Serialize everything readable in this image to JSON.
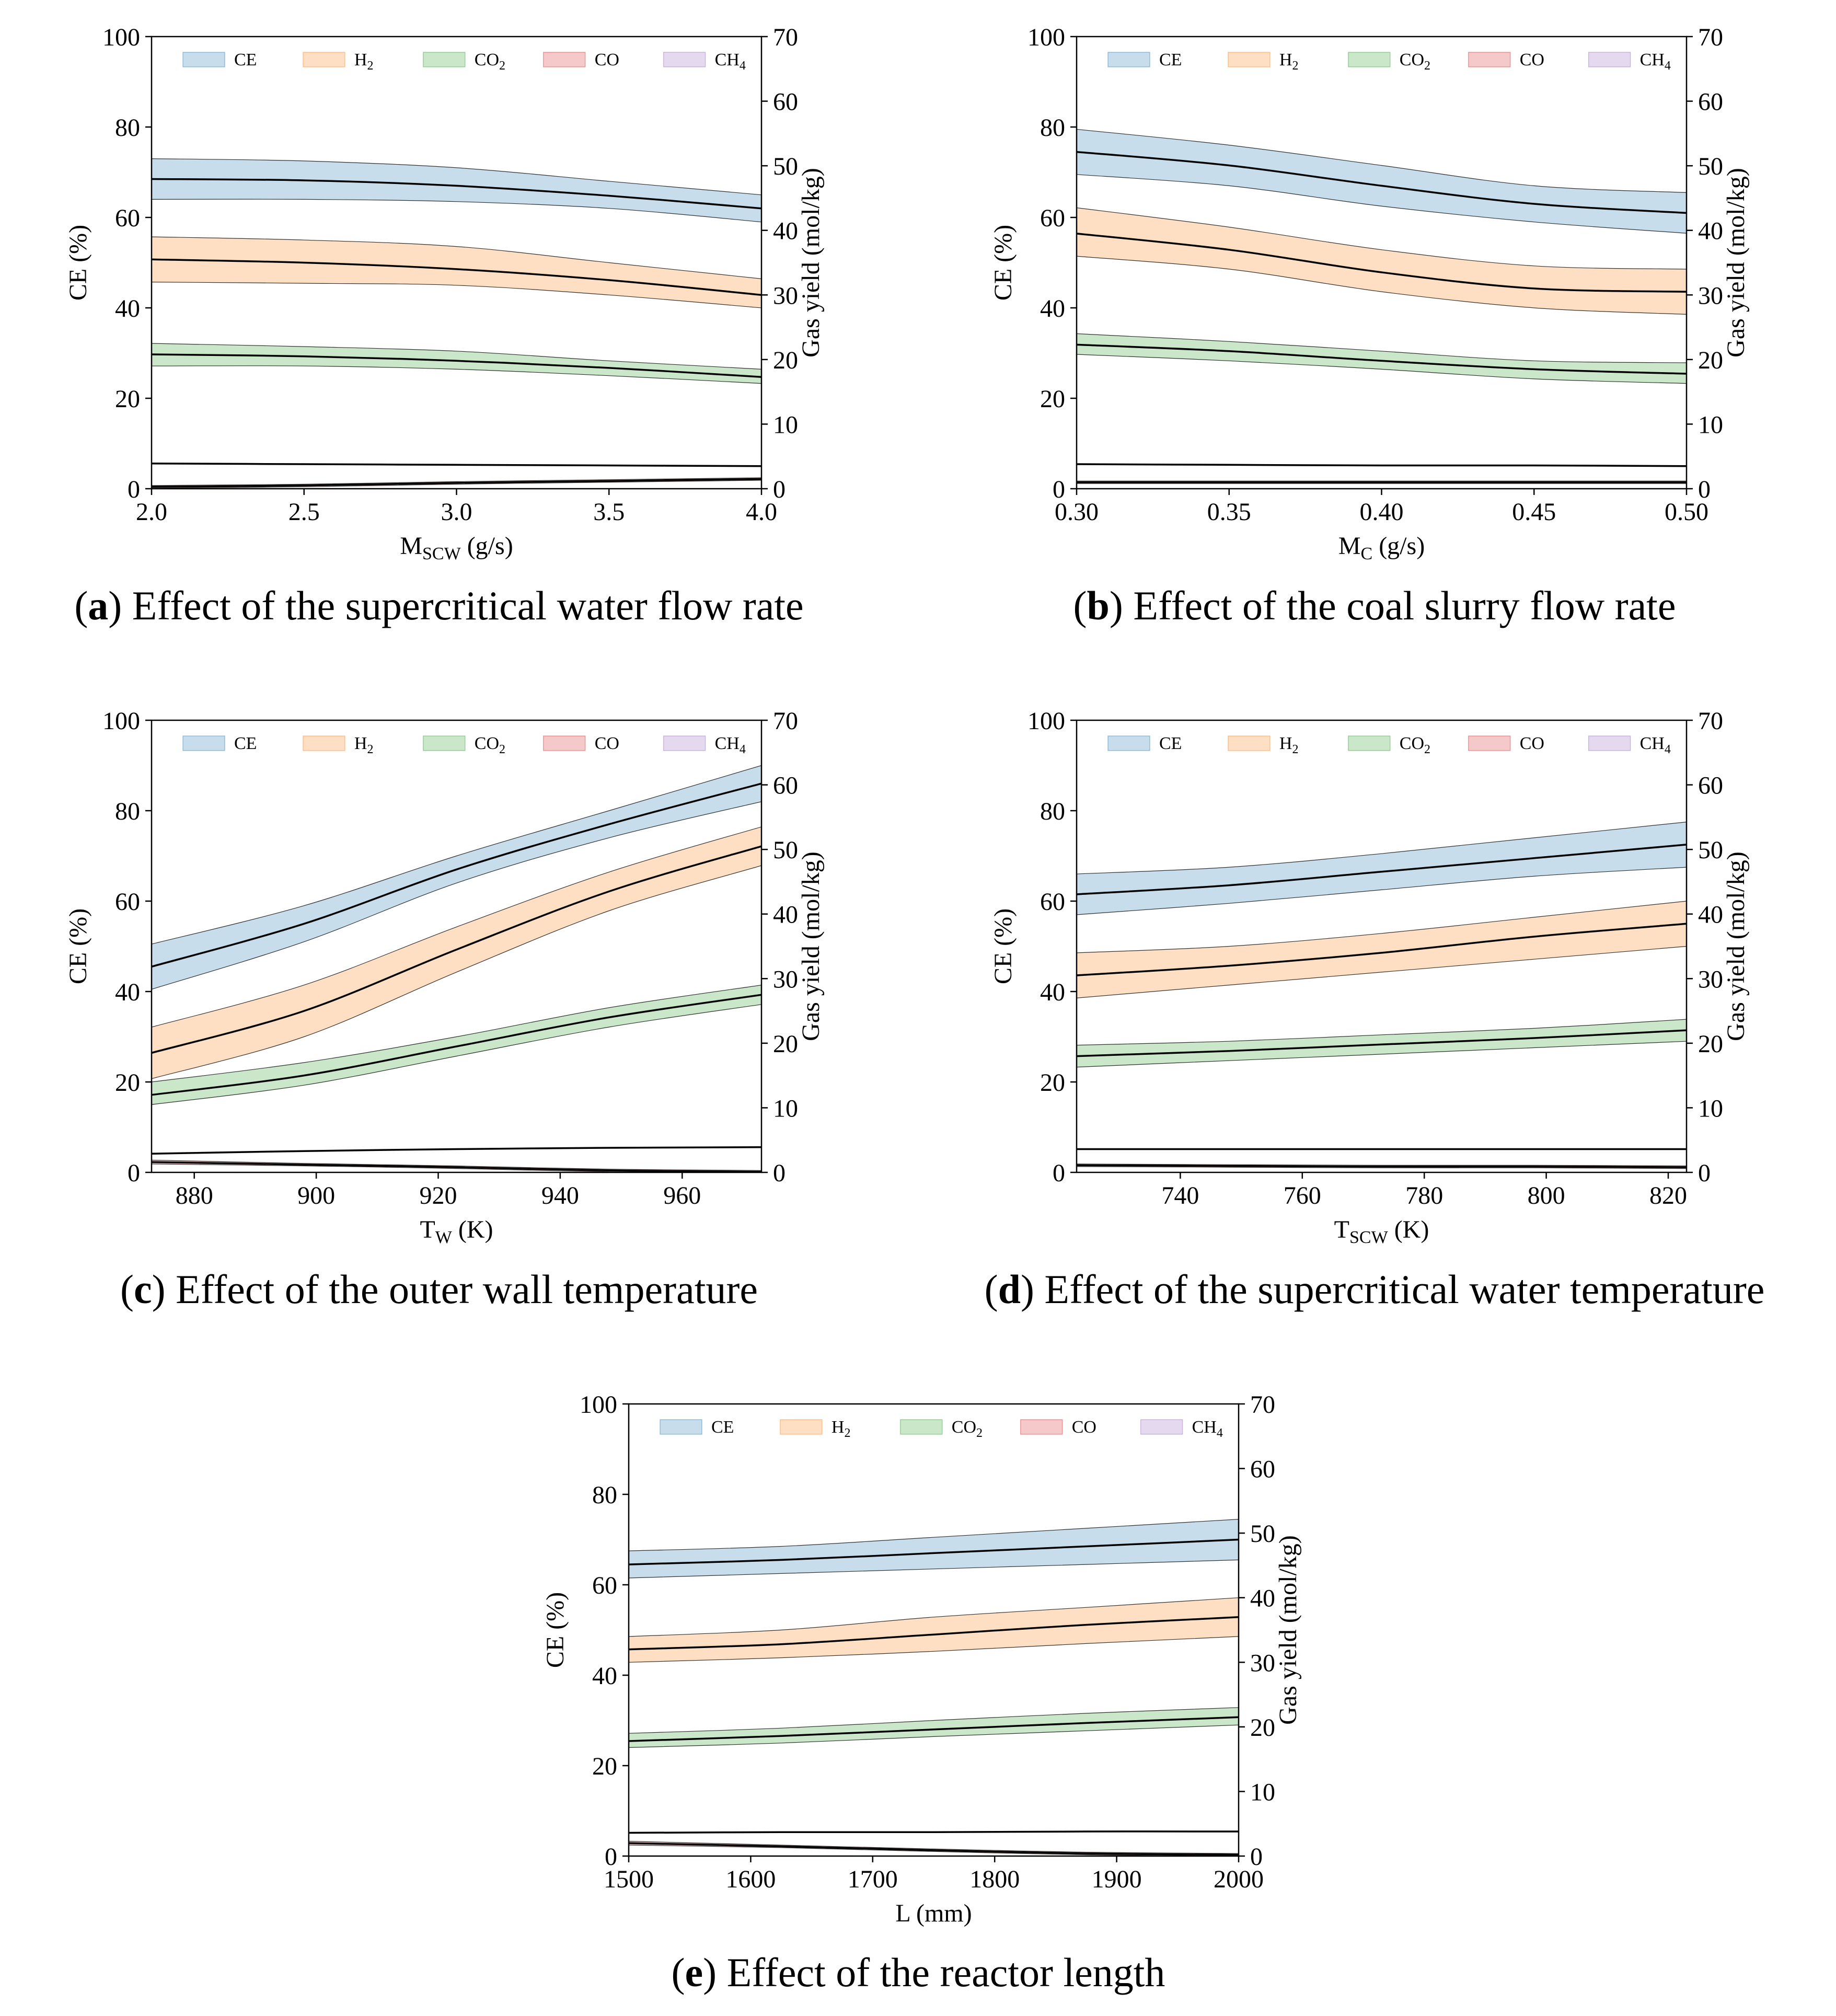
{
  "figure": {
    "panels": [
      {
        "id": "a",
        "letter": "a",
        "caption_text": "Effect of the supercritical water flow rate"
      },
      {
        "id": "b",
        "letter": "b",
        "caption_text": "Effect of the coal slurry flow rate"
      },
      {
        "id": "c",
        "letter": "c",
        "caption_text": "Effect of the outer wall temperature"
      },
      {
        "id": "d",
        "letter": "d",
        "caption_text": "Effect of the supercritical water temperature"
      },
      {
        "id": "e",
        "letter": "e",
        "caption_text": "Effect of the reactor length"
      }
    ]
  },
  "chart_data": [
    {
      "id": "a",
      "type": "line",
      "xlabel": "M",
      "xlabel_sub": "SCW",
      "xlabel_unit": " (g/s)",
      "ylabel_left": "CE (%)",
      "ylabel_right": "Gas yield (mol/kg)",
      "xlim": [
        2.0,
        4.0
      ],
      "ylim_left": [
        0,
        100
      ],
      "ylim_right": [
        0,
        70
      ],
      "xticks": [
        2.0,
        2.5,
        3.0,
        3.5,
        4.0
      ],
      "xtick_labels": [
        "2.0",
        "2.5",
        "3.0",
        "3.5",
        "4.0"
      ],
      "yticks_left": [
        "0",
        "20",
        "40",
        "60",
        "80",
        "100"
      ],
      "yticks_right": [
        "0",
        "10",
        "20",
        "30",
        "40",
        "50",
        "60",
        "70"
      ],
      "legend_position": "top",
      "series": [
        {
          "name": "CE",
          "axis": "left",
          "color": "#1f77b4",
          "x": [
            2.0,
            2.5,
            3.0,
            3.5,
            4.0
          ],
          "mean": [
            68.5,
            68.2,
            67.0,
            64.8,
            62.0
          ],
          "upper": [
            73.0,
            72.5,
            71.0,
            68.0,
            65.0
          ],
          "lower": [
            64.0,
            64.0,
            63.5,
            62.0,
            59.0
          ]
        },
        {
          "name": "H₂",
          "axis": "right",
          "color": "#ff7f0e",
          "x": [
            2.0,
            2.5,
            3.0,
            3.5,
            4.0
          ],
          "mean": [
            35.5,
            35.0,
            34.0,
            32.3,
            30.0
          ],
          "upper": [
            39.0,
            38.5,
            37.5,
            35.0,
            32.5
          ],
          "lower": [
            32.0,
            31.8,
            31.5,
            30.0,
            28.0
          ]
        },
        {
          "name": "CO₂",
          "axis": "right",
          "color": "#2ca02c",
          "x": [
            2.0,
            2.5,
            3.0,
            3.5,
            4.0
          ],
          "mean": [
            20.8,
            20.5,
            19.8,
            18.7,
            17.3
          ],
          "upper": [
            22.5,
            22.0,
            21.3,
            19.8,
            18.5
          ],
          "lower": [
            19.0,
            19.0,
            18.5,
            17.5,
            16.3
          ]
        },
        {
          "name": "CO",
          "axis": "right",
          "color": "#d62728",
          "x": [
            2.0,
            2.5,
            3.0,
            3.5,
            4.0
          ],
          "mean": [
            0.3,
            0.5,
            0.9,
            1.2,
            1.5
          ],
          "upper": [
            0.5,
            0.7,
            1.1,
            1.4,
            1.7
          ],
          "lower": [
            0.1,
            0.3,
            0.7,
            1.0,
            1.3
          ]
        },
        {
          "name": "CH₄",
          "axis": "right",
          "color": "#9467bd",
          "x": [
            2.0,
            2.5,
            3.0,
            3.5,
            4.0
          ],
          "mean": [
            3.9,
            3.8,
            3.7,
            3.6,
            3.5
          ],
          "upper": [
            3.9,
            3.8,
            3.7,
            3.6,
            3.5
          ],
          "lower": [
            3.9,
            3.8,
            3.7,
            3.6,
            3.5
          ]
        }
      ]
    },
    {
      "id": "b",
      "type": "line",
      "xlabel": "M",
      "xlabel_sub": "C",
      "xlabel_unit": " (g/s)",
      "ylabel_left": "CE (%)",
      "ylabel_right": "Gas yield (mol/kg)",
      "xlim": [
        0.3,
        0.5
      ],
      "ylim_left": [
        0,
        100
      ],
      "ylim_right": [
        0,
        70
      ],
      "xticks": [
        0.3,
        0.35,
        0.4,
        0.45,
        0.5
      ],
      "xtick_labels": [
        "0.30",
        "0.35",
        "0.40",
        "0.45",
        "0.50"
      ],
      "yticks_left": [
        "0",
        "20",
        "40",
        "60",
        "80",
        "100"
      ],
      "yticks_right": [
        "0",
        "10",
        "20",
        "30",
        "40",
        "50",
        "60",
        "70"
      ],
      "legend_position": "top",
      "series": [
        {
          "name": "CE",
          "axis": "left",
          "color": "#1f77b4",
          "x": [
            0.3,
            0.35,
            0.4,
            0.45,
            0.5
          ],
          "mean": [
            74.5,
            71.5,
            67.0,
            63.0,
            61.0
          ],
          "upper": [
            79.5,
            76.0,
            71.5,
            67.0,
            65.5
          ],
          "lower": [
            69.5,
            67.0,
            62.5,
            59.0,
            56.5
          ]
        },
        {
          "name": "H₂",
          "axis": "right",
          "color": "#ff7f0e",
          "x": [
            0.3,
            0.35,
            0.4,
            0.45,
            0.5
          ],
          "mean": [
            39.5,
            37.0,
            33.5,
            31.0,
            30.5
          ],
          "upper": [
            43.5,
            40.5,
            37.0,
            34.5,
            34.0
          ],
          "lower": [
            36.0,
            34.0,
            30.5,
            28.0,
            27.0
          ]
        },
        {
          "name": "CO₂",
          "axis": "right",
          "color": "#2ca02c",
          "x": [
            0.3,
            0.35,
            0.4,
            0.45,
            0.5
          ],
          "mean": [
            22.3,
            21.3,
            19.8,
            18.5,
            17.8
          ],
          "upper": [
            24.0,
            22.8,
            21.3,
            19.8,
            19.5
          ],
          "lower": [
            20.8,
            19.8,
            18.5,
            17.0,
            16.3
          ]
        },
        {
          "name": "CO",
          "axis": "right",
          "color": "#d62728",
          "x": [
            0.3,
            0.35,
            0.4,
            0.45,
            0.5
          ],
          "mean": [
            1.0,
            1.0,
            1.0,
            1.0,
            1.0
          ],
          "upper": [
            1.2,
            1.2,
            1.2,
            1.2,
            1.2
          ],
          "lower": [
            0.8,
            0.8,
            0.8,
            0.8,
            0.8
          ]
        },
        {
          "name": "CH₄",
          "axis": "right",
          "color": "#9467bd",
          "x": [
            0.3,
            0.35,
            0.4,
            0.45,
            0.5
          ],
          "mean": [
            3.8,
            3.7,
            3.6,
            3.6,
            3.5
          ],
          "upper": [
            3.8,
            3.7,
            3.6,
            3.6,
            3.5
          ],
          "lower": [
            3.8,
            3.7,
            3.6,
            3.6,
            3.5
          ]
        }
      ]
    },
    {
      "id": "c",
      "type": "line",
      "xlabel": "T",
      "xlabel_sub": "W",
      "xlabel_unit": " (K)",
      "ylabel_left": "CE (%)",
      "ylabel_right": "Gas yield (mol/kg)",
      "xlim": [
        873,
        973
      ],
      "ylim_left": [
        0,
        100
      ],
      "ylim_right": [
        0,
        70
      ],
      "xticks": [
        880,
        900,
        920,
        940,
        960
      ],
      "xtick_labels": [
        "880",
        "900",
        "920",
        "940",
        "960"
      ],
      "yticks_left": [
        "0",
        "20",
        "40",
        "60",
        "80",
        "100"
      ],
      "yticks_right": [
        "0",
        "10",
        "20",
        "30",
        "40",
        "50",
        "60",
        "70"
      ],
      "legend_position": "top",
      "series": [
        {
          "name": "CE",
          "axis": "left",
          "color": "#1f77b4",
          "x": [
            873,
            898,
            923,
            948,
            973
          ],
          "mean": [
            45.5,
            55.0,
            67.0,
            77.0,
            86.0
          ],
          "upper": [
            50.5,
            59.0,
            70.0,
            80.0,
            90.0
          ],
          "lower": [
            40.5,
            51.0,
            64.0,
            74.0,
            82.0
          ]
        },
        {
          "name": "H₂",
          "axis": "right",
          "color": "#ff7f0e",
          "x": [
            873,
            898,
            923,
            948,
            973
          ],
          "mean": [
            18.5,
            25.0,
            34.5,
            43.5,
            50.5
          ],
          "upper": [
            22.5,
            29.0,
            38.0,
            46.5,
            53.5
          ],
          "lower": [
            14.5,
            21.0,
            31.0,
            40.5,
            47.5
          ]
        },
        {
          "name": "CO₂",
          "axis": "right",
          "color": "#2ca02c",
          "x": [
            873,
            898,
            923,
            948,
            973
          ],
          "mean": [
            12.0,
            15.0,
            19.5,
            24.0,
            27.5
          ],
          "upper": [
            14.0,
            17.0,
            21.0,
            25.5,
            29.0
          ],
          "lower": [
            10.5,
            13.5,
            18.0,
            22.5,
            26.0
          ]
        },
        {
          "name": "CO",
          "axis": "right",
          "color": "#d62728",
          "x": [
            873,
            898,
            923,
            948,
            973
          ],
          "mean": [
            1.6,
            1.2,
            0.8,
            0.3,
            0.1
          ],
          "upper": [
            1.9,
            1.4,
            1.0,
            0.5,
            0.3
          ],
          "lower": [
            1.3,
            1.0,
            0.6,
            0.1,
            0.0
          ]
        },
        {
          "name": "CH₄",
          "axis": "right",
          "color": "#9467bd",
          "x": [
            873,
            898,
            923,
            948,
            973
          ],
          "mean": [
            2.9,
            3.3,
            3.6,
            3.8,
            3.9
          ],
          "upper": [
            2.9,
            3.3,
            3.6,
            3.8,
            3.9
          ],
          "lower": [
            2.9,
            3.3,
            3.6,
            3.8,
            3.9
          ]
        }
      ]
    },
    {
      "id": "d",
      "type": "line",
      "xlabel": "T",
      "xlabel_sub": "SCW",
      "xlabel_unit": " (K)",
      "ylabel_left": "CE (%)",
      "ylabel_right": "Gas yield (mol/kg)",
      "xlim": [
        723,
        823
      ],
      "ylim_left": [
        0,
        100
      ],
      "ylim_right": [
        0,
        70
      ],
      "xticks": [
        740,
        760,
        780,
        800,
        820
      ],
      "xtick_labels": [
        "740",
        "760",
        "780",
        "800",
        "820"
      ],
      "yticks_left": [
        "0",
        "20",
        "40",
        "60",
        "80",
        "100"
      ],
      "yticks_right": [
        "0",
        "10",
        "20",
        "30",
        "40",
        "50",
        "60",
        "70"
      ],
      "legend_position": "top",
      "series": [
        {
          "name": "CE",
          "axis": "left",
          "color": "#1f77b4",
          "x": [
            723,
            748,
            773,
            798,
            823
          ],
          "mean": [
            61.5,
            63.5,
            66.5,
            69.5,
            72.5
          ],
          "upper": [
            66.0,
            67.5,
            70.5,
            74.0,
            77.5
          ],
          "lower": [
            57.0,
            59.5,
            62.5,
            65.5,
            67.5
          ]
        },
        {
          "name": "H₂",
          "axis": "right",
          "color": "#ff7f0e",
          "x": [
            723,
            748,
            773,
            798,
            823
          ],
          "mean": [
            30.5,
            32.0,
            34.0,
            36.5,
            38.5
          ],
          "upper": [
            34.0,
            35.0,
            37.0,
            39.5,
            42.0
          ],
          "lower": [
            27.0,
            29.0,
            31.0,
            33.0,
            35.0
          ]
        },
        {
          "name": "CO₂",
          "axis": "right",
          "color": "#2ca02c",
          "x": [
            723,
            748,
            773,
            798,
            823
          ],
          "mean": [
            18.0,
            18.8,
            19.8,
            20.8,
            22.0
          ],
          "upper": [
            19.7,
            20.3,
            21.3,
            22.3,
            23.7
          ],
          "lower": [
            16.3,
            17.3,
            18.3,
            19.3,
            20.3
          ]
        },
        {
          "name": "CO",
          "axis": "right",
          "color": "#d62728",
          "x": [
            723,
            748,
            773,
            798,
            823
          ],
          "mean": [
            1.1,
            1.0,
            0.9,
            0.9,
            0.8
          ],
          "upper": [
            1.3,
            1.2,
            1.1,
            1.1,
            1.0
          ],
          "lower": [
            0.9,
            0.8,
            0.7,
            0.7,
            0.6
          ]
        },
        {
          "name": "CH₄",
          "axis": "right",
          "color": "#9467bd",
          "x": [
            723,
            748,
            773,
            798,
            823
          ],
          "mean": [
            3.6,
            3.6,
            3.6,
            3.6,
            3.6
          ],
          "upper": [
            3.6,
            3.6,
            3.6,
            3.6,
            3.6
          ],
          "lower": [
            3.6,
            3.6,
            3.6,
            3.6,
            3.6
          ]
        }
      ]
    },
    {
      "id": "e",
      "type": "line",
      "xlabel": "L",
      "xlabel_sub": "",
      "xlabel_unit": " (mm)",
      "ylabel_left": "CE (%)",
      "ylabel_right": "Gas yield (mol/kg)",
      "xlim": [
        1500,
        2000
      ],
      "ylim_left": [
        0,
        100
      ],
      "ylim_right": [
        0,
        70
      ],
      "xticks": [
        1500,
        1600,
        1700,
        1800,
        1900,
        2000
      ],
      "xtick_labels": [
        "1500",
        "1600",
        "1700",
        "1800",
        "1900",
        "2000"
      ],
      "yticks_left": [
        "0",
        "20",
        "40",
        "60",
        "80",
        "100"
      ],
      "yticks_right": [
        "0",
        "10",
        "20",
        "30",
        "40",
        "50",
        "60",
        "70"
      ],
      "legend_position": "top",
      "series": [
        {
          "name": "CE",
          "axis": "left",
          "color": "#1f77b4",
          "x": [
            1500,
            1625,
            1750,
            1875,
            2000
          ],
          "mean": [
            64.5,
            65.5,
            67.0,
            68.5,
            70.0
          ],
          "upper": [
            67.5,
            68.5,
            70.5,
            72.5,
            74.5
          ],
          "lower": [
            61.5,
            62.5,
            63.5,
            64.5,
            65.5
          ]
        },
        {
          "name": "H₂",
          "axis": "right",
          "color": "#ff7f0e",
          "x": [
            1500,
            1625,
            1750,
            1875,
            2000
          ],
          "mean": [
            32.0,
            32.8,
            34.3,
            35.8,
            37.0
          ],
          "upper": [
            34.0,
            35.0,
            37.0,
            38.5,
            40.0
          ],
          "lower": [
            30.0,
            30.7,
            31.7,
            32.9,
            34.0
          ]
        },
        {
          "name": "CO₂",
          "axis": "right",
          "color": "#2ca02c",
          "x": [
            1500,
            1625,
            1750,
            1875,
            2000
          ],
          "mean": [
            17.8,
            18.6,
            19.6,
            20.6,
            21.5
          ],
          "upper": [
            19.0,
            19.8,
            21.0,
            22.1,
            23.0
          ],
          "lower": [
            16.8,
            17.5,
            18.5,
            19.4,
            20.3
          ]
        },
        {
          "name": "CO",
          "axis": "right",
          "color": "#d62728",
          "x": [
            1500,
            1625,
            1750,
            1875,
            2000
          ],
          "mean": [
            2.0,
            1.5,
            0.9,
            0.4,
            0.2
          ],
          "upper": [
            2.3,
            1.7,
            1.1,
            0.6,
            0.4
          ],
          "lower": [
            1.7,
            1.3,
            0.7,
            0.2,
            0.0
          ]
        },
        {
          "name": "CH₄",
          "axis": "right",
          "color": "#9467bd",
          "x": [
            1500,
            1625,
            1750,
            1875,
            2000
          ],
          "mean": [
            3.6,
            3.7,
            3.7,
            3.8,
            3.8
          ],
          "upper": [
            3.6,
            3.7,
            3.7,
            3.8,
            3.8
          ],
          "lower": [
            3.6,
            3.7,
            3.7,
            3.8,
            3.8
          ]
        }
      ]
    }
  ]
}
